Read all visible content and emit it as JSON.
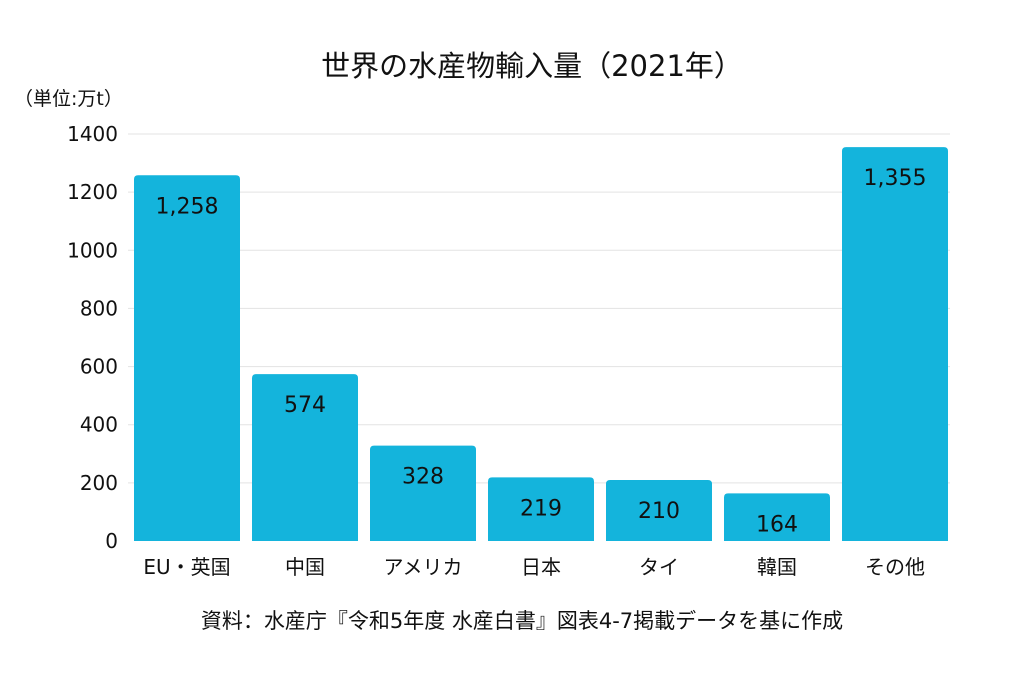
{
  "chart_data": {
    "type": "bar",
    "title": "世界の水産物輸入量（2021年）",
    "unit_label": "（単位:万t）",
    "source": "資料：水産庁『令和5年度 水産白書』図表4-7掲載データを基に作成",
    "categories": [
      "EU・英国",
      "中国",
      "アメリカ",
      "日本",
      "タイ",
      "韓国",
      "その他"
    ],
    "values": [
      1258,
      574,
      328,
      219,
      210,
      164,
      1355
    ],
    "value_labels": [
      "1,258",
      "574",
      "328",
      "219",
      "210",
      "164",
      "1,355"
    ],
    "ylim": [
      0,
      1400
    ],
    "yticks": [
      0,
      200,
      400,
      600,
      800,
      1000,
      1200,
      1400
    ],
    "grid": true,
    "bar_color": "#14B4DC"
  }
}
